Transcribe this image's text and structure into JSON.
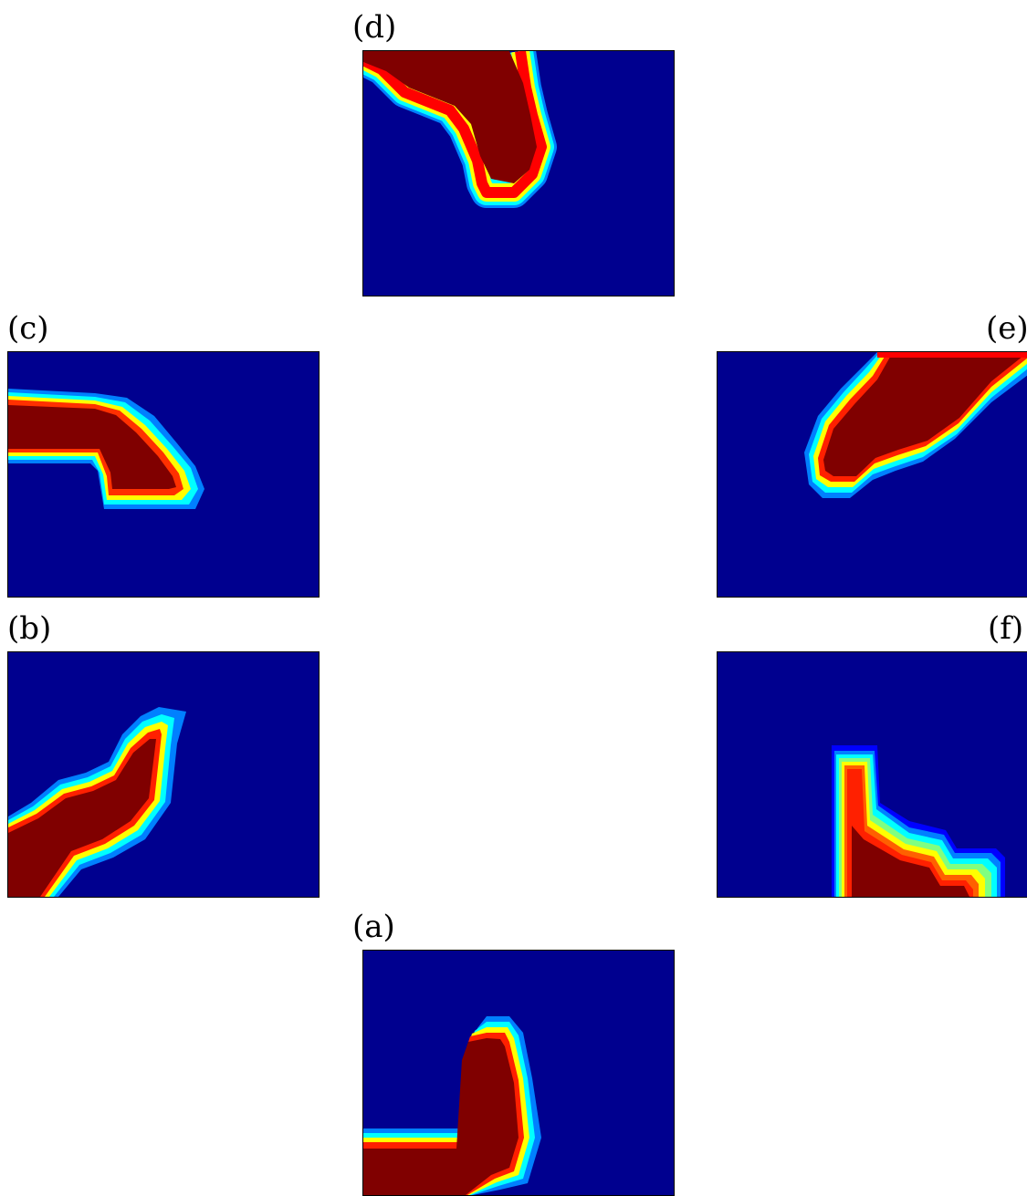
{
  "figure": {
    "panels": [
      {
        "id": "d",
        "label": "(d)"
      },
      {
        "id": "c",
        "label": "(c)"
      },
      {
        "id": "e",
        "label": "(e)"
      },
      {
        "id": "b",
        "label": "(b)"
      },
      {
        "id": "f",
        "label": "(f)"
      },
      {
        "id": "a",
        "label": "(a)"
      }
    ],
    "colormap": {
      "background": "#00008f",
      "blue": "#0000ff",
      "dodger": "#0080ff",
      "cyan": "#00ffff",
      "green": "#80ff80",
      "yellow": "#ffff00",
      "orange": "#ff8000",
      "red": "#ff0000",
      "core": "#800000"
    }
  }
}
